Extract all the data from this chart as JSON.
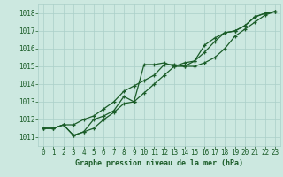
{
  "xlabel": "Graphe pression niveau de la mer (hPa)",
  "background_color": "#cce8e0",
  "grid_color": "#aacfc8",
  "line_color": "#1a5c28",
  "x": [
    0,
    1,
    2,
    3,
    4,
    5,
    6,
    7,
    8,
    9,
    10,
    11,
    12,
    13,
    14,
    15,
    16,
    17,
    18,
    19,
    20,
    21,
    22,
    23
  ],
  "line1": [
    1011.5,
    1011.5,
    1011.7,
    1011.1,
    1011.3,
    1012.0,
    1012.2,
    1012.5,
    1013.3,
    1013.0,
    1015.1,
    1015.1,
    1015.2,
    1015.0,
    1015.0,
    1015.3,
    1016.2,
    1016.6,
    1016.9,
    1017.0,
    1017.3,
    1017.8,
    1018.0,
    1018.1
  ],
  "line2": [
    1011.5,
    1011.5,
    1011.7,
    1011.7,
    1012.0,
    1012.2,
    1012.6,
    1013.0,
    1013.6,
    1013.9,
    1014.2,
    1014.5,
    1015.1,
    1015.1,
    1015.0,
    1015.0,
    1015.2,
    1015.5,
    1016.0,
    1016.7,
    1017.1,
    1017.5,
    1017.9,
    1018.1
  ],
  "line3": [
    1011.5,
    1011.5,
    1011.7,
    1011.1,
    1011.3,
    1011.5,
    1012.0,
    1012.4,
    1012.9,
    1013.0,
    1013.5,
    1014.0,
    1014.5,
    1015.0,
    1015.2,
    1015.3,
    1015.8,
    1016.4,
    1016.9,
    1017.0,
    1017.3,
    1017.8,
    1018.0,
    1018.1
  ],
  "ylim": [
    1010.5,
    1018.5
  ],
  "yticks": [
    1011,
    1012,
    1013,
    1014,
    1015,
    1016,
    1017,
    1018
  ],
  "xlim": [
    -0.5,
    23.5
  ],
  "xticks": [
    0,
    1,
    2,
    3,
    4,
    5,
    6,
    7,
    8,
    9,
    10,
    11,
    12,
    13,
    14,
    15,
    16,
    17,
    18,
    19,
    20,
    21,
    22,
    23
  ]
}
